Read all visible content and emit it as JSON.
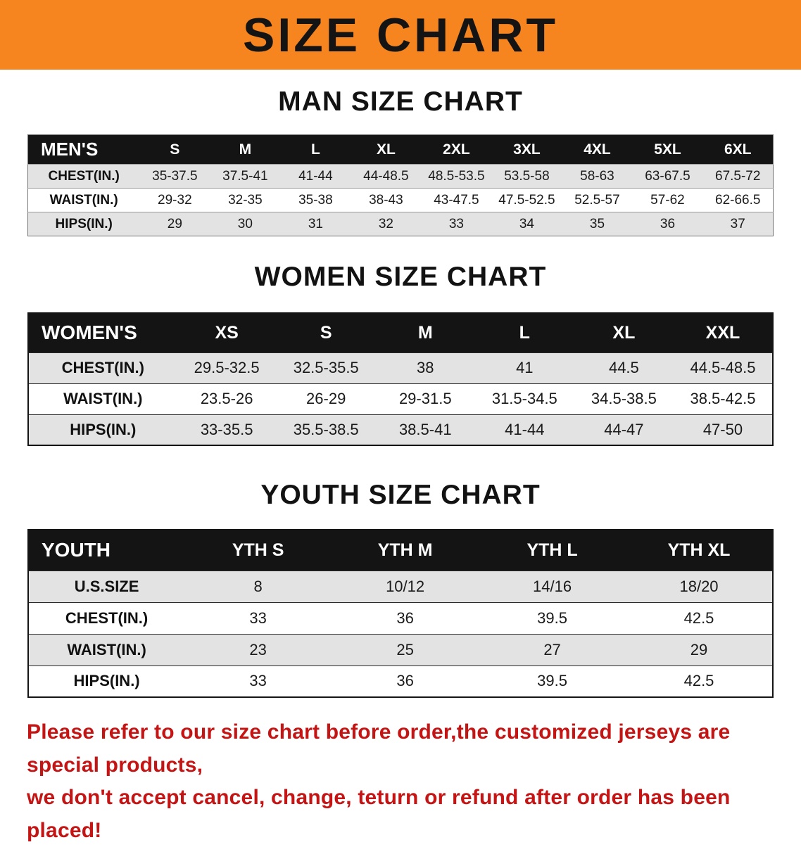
{
  "banner": {
    "title": "SIZE CHART"
  },
  "colors": {
    "banner_bg": "#f6841f",
    "table_header_bg": "#141414",
    "row_stripe": "#e3e3e3",
    "disclaimer_red": "#c41414"
  },
  "sections": [
    {
      "heading": "MAN SIZE CHART",
      "table": {
        "header": [
          "MEN'S",
          "S",
          "M",
          "L",
          "XL",
          "2XL",
          "3XL",
          "4XL",
          "5XL",
          "6XL"
        ],
        "rows": [
          [
            "CHEST(IN.)",
            "35-37.5",
            "37.5-41",
            "41-44",
            "44-48.5",
            "48.5-53.5",
            "53.5-58",
            "58-63",
            "63-67.5",
            "67.5-72"
          ],
          [
            "WAIST(IN.)",
            "29-32",
            "32-35",
            "35-38",
            "38-43",
            "43-47.5",
            "47.5-52.5",
            "52.5-57",
            "57-62",
            "62-66.5"
          ],
          [
            "HIPS(IN.)",
            "29",
            "30",
            "31",
            "32",
            "33",
            "34",
            "35",
            "36",
            "37"
          ]
        ]
      }
    },
    {
      "heading": "WOMEN SIZE CHART",
      "table": {
        "header": [
          "WOMEN'S",
          "XS",
          "S",
          "M",
          "L",
          "XL",
          "XXL"
        ],
        "rows": [
          [
            "CHEST(IN.)",
            "29.5-32.5",
            "32.5-35.5",
            "38",
            "41",
            "44.5",
            "44.5-48.5"
          ],
          [
            "WAIST(IN.)",
            "23.5-26",
            "26-29",
            "29-31.5",
            "31.5-34.5",
            "34.5-38.5",
            "38.5-42.5"
          ],
          [
            "HIPS(IN.)",
            "33-35.5",
            "35.5-38.5",
            "38.5-41",
            "41-44",
            "44-47",
            "47-50"
          ]
        ]
      }
    },
    {
      "heading": "YOUTH SIZE CHART",
      "table": {
        "header": [
          "YOUTH",
          "YTH S",
          "YTH M",
          "YTH L",
          "YTH XL"
        ],
        "rows": [
          [
            "U.S.SIZE",
            "8",
            "10/12",
            "14/16",
            "18/20"
          ],
          [
            "CHEST(IN.)",
            "33",
            "36",
            "39.5",
            "42.5"
          ],
          [
            "WAIST(IN.)",
            "23",
            "25",
            "27",
            "29"
          ],
          [
            "HIPS(IN.)",
            "33",
            "36",
            "39.5",
            "42.5"
          ]
        ]
      }
    }
  ],
  "footer": {
    "line1": "Please refer to our size chart before order,the customized jerseys are special products,",
    "line2": "we don't accept cancel, change, teturn or refund after order has been placed!"
  }
}
